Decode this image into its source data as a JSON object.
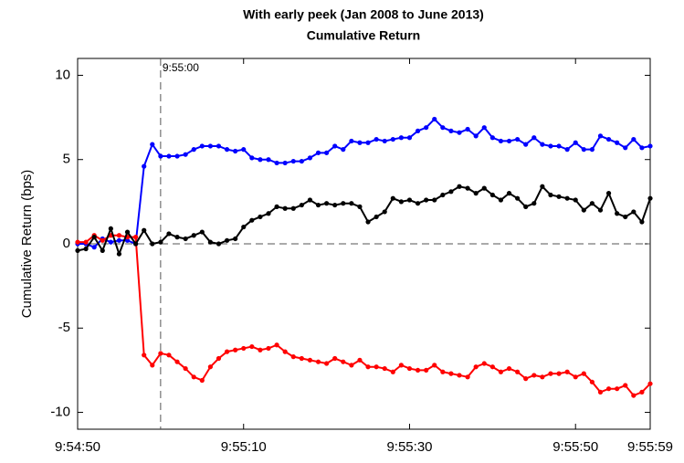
{
  "chart_data": {
    "type": "line",
    "title": "With early peek (Jan 2008 to June 2013)",
    "subtitle": "Cumulative Return",
    "ylabel": "Cumulative Return (bps)",
    "x": [
      "9:54:50",
      "9:54:51",
      "9:54:52",
      "9:54:53",
      "9:54:54",
      "9:54:55",
      "9:54:56",
      "9:54:57",
      "9:54:58",
      "9:54:59",
      "9:55:00",
      "9:55:01",
      "9:55:02",
      "9:55:03",
      "9:55:04",
      "9:55:05",
      "9:55:06",
      "9:55:07",
      "9:55:08",
      "9:55:09",
      "9:55:10",
      "9:55:11",
      "9:55:12",
      "9:55:13",
      "9:55:14",
      "9:55:15",
      "9:55:16",
      "9:55:17",
      "9:55:18",
      "9:55:19",
      "9:55:20",
      "9:55:21",
      "9:55:22",
      "9:55:23",
      "9:55:24",
      "9:55:25",
      "9:55:26",
      "9:55:27",
      "9:55:28",
      "9:55:29",
      "9:55:30",
      "9:55:31",
      "9:55:32",
      "9:55:33",
      "9:55:34",
      "9:55:35",
      "9:55:36",
      "9:55:37",
      "9:55:38",
      "9:55:39",
      "9:55:40",
      "9:55:41",
      "9:55:42",
      "9:55:43",
      "9:55:44",
      "9:55:45",
      "9:55:46",
      "9:55:47",
      "9:55:48",
      "9:55:49",
      "9:55:50",
      "9:55:51",
      "9:55:52",
      "9:55:53",
      "9:55:54",
      "9:55:55",
      "9:55:56",
      "9:55:57",
      "9:55:58",
      "9:55:59"
    ],
    "series": [
      {
        "color": "#0000ff",
        "values": [
          0.0,
          0.0,
          -0.2,
          0.3,
          0.1,
          0.2,
          0.2,
          0.0,
          4.6,
          5.9,
          5.2,
          5.2,
          5.2,
          5.3,
          5.6,
          5.8,
          5.8,
          5.8,
          5.6,
          5.5,
          5.6,
          5.1,
          5.0,
          5.0,
          4.8,
          4.8,
          4.9,
          4.9,
          5.1,
          5.4,
          5.4,
          5.8,
          5.6,
          6.1,
          6.0,
          6.0,
          6.2,
          6.1,
          6.2,
          6.3,
          6.3,
          6.7,
          6.9,
          7.4,
          6.9,
          6.7,
          6.6,
          6.8,
          6.4,
          6.9,
          6.3,
          6.1,
          6.1,
          6.2,
          5.9,
          6.3,
          5.9,
          5.8,
          5.8,
          5.6,
          6.0,
          5.6,
          5.6,
          6.4,
          6.2,
          6.0,
          5.7,
          6.2,
          5.7,
          5.8
        ]
      },
      {
        "color": "#ff0000",
        "values": [
          0.1,
          0.1,
          0.5,
          0.2,
          0.5,
          0.5,
          0.4,
          0.4,
          -6.6,
          -7.2,
          -6.5,
          -6.6,
          -7.0,
          -7.4,
          -7.9,
          -8.1,
          -7.3,
          -6.8,
          -6.4,
          -6.3,
          -6.2,
          -6.1,
          -6.3,
          -6.2,
          -6.0,
          -6.4,
          -6.7,
          -6.8,
          -6.9,
          -7.0,
          -7.1,
          -6.8,
          -7.0,
          -7.2,
          -6.9,
          -7.3,
          -7.3,
          -7.4,
          -7.6,
          -7.2,
          -7.4,
          -7.5,
          -7.5,
          -7.2,
          -7.6,
          -7.7,
          -7.8,
          -7.9,
          -7.3,
          -7.1,
          -7.3,
          -7.6,
          -7.4,
          -7.6,
          -8.0,
          -7.8,
          -7.9,
          -7.7,
          -7.7,
          -7.6,
          -7.9,
          -7.7,
          -8.2,
          -8.8,
          -8.6,
          -8.6,
          -8.4,
          -9.0,
          -8.8,
          -8.3
        ]
      },
      {
        "color": "#000000",
        "values": [
          -0.4,
          -0.3,
          0.4,
          -0.4,
          0.9,
          -0.6,
          0.7,
          0.0,
          0.8,
          0.0,
          0.1,
          0.6,
          0.4,
          0.3,
          0.5,
          0.7,
          0.1,
          0.0,
          0.2,
          0.3,
          1.0,
          1.4,
          1.6,
          1.8,
          2.2,
          2.1,
          2.1,
          2.3,
          2.6,
          2.3,
          2.4,
          2.3,
          2.4,
          2.4,
          2.2,
          1.3,
          1.6,
          1.9,
          2.7,
          2.5,
          2.6,
          2.4,
          2.6,
          2.6,
          2.9,
          3.1,
          3.4,
          3.3,
          3.0,
          3.3,
          2.9,
          2.6,
          3.0,
          2.7,
          2.2,
          2.4,
          3.4,
          2.9,
          2.8,
          2.7,
          2.6,
          2.0,
          2.4,
          2.0,
          3.0,
          1.8,
          1.6,
          1.9,
          1.3,
          2.7
        ]
      }
    ],
    "xlim": [
      "9:54:50",
      "9:55:59"
    ],
    "xticks": [
      "9:54:50",
      "9:55:10",
      "9:55:30",
      "9:55:50",
      "9:55:59"
    ],
    "ylim": [
      -11,
      11
    ],
    "yticks": [
      -10,
      -5,
      0,
      5,
      10
    ],
    "hline": 0,
    "vline": "9:55:00",
    "vline_label": "9:55:00"
  }
}
